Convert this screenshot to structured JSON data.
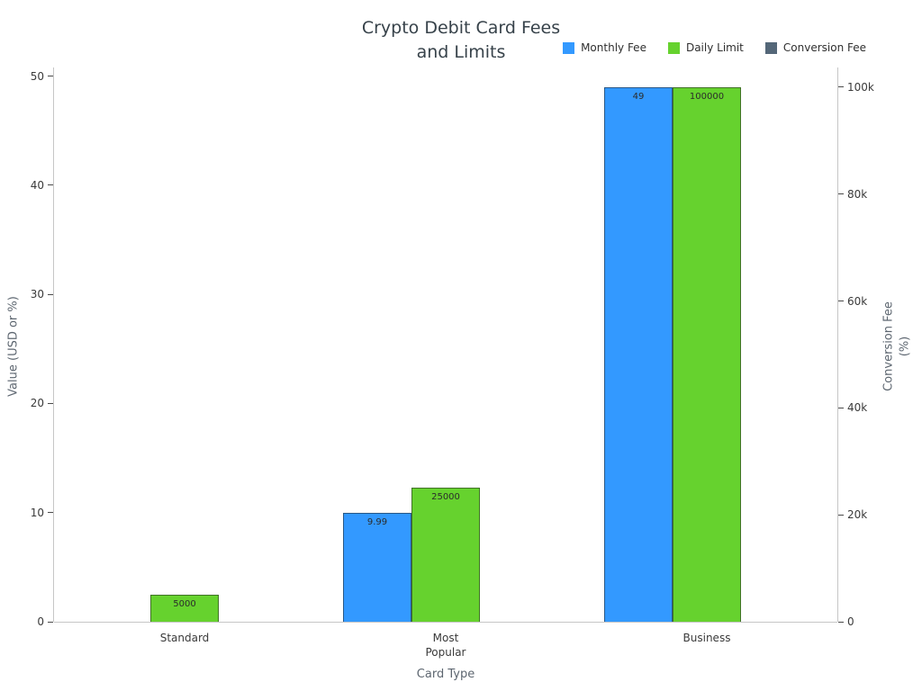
{
  "header": {
    "title": "Crypto Debit Card Fees\nand Limits"
  },
  "chart_data": {
    "type": "bar",
    "title": "Crypto Debit Card Fees and Limits",
    "xlabel": "Card Type",
    "ylabel_left": "Value (USD or %)",
    "ylabel_right": "Conversion Fee (%)",
    "categories": [
      "Standard",
      "Most Popular",
      "Business"
    ],
    "x_tick_labels": [
      "Standard",
      "Most\nPopular",
      "Business"
    ],
    "series": [
      {
        "name": "Monthly Fee",
        "color": "#3399ff",
        "axis": "left",
        "values": [
          0,
          9.99,
          49
        ],
        "bar_labels": [
          "",
          "9.99",
          "49"
        ]
      },
      {
        "name": "Daily Limit",
        "color": "#66d22e",
        "axis": "right",
        "values": [
          5000,
          25000,
          100000
        ],
        "bar_labels": [
          "5000",
          "25000",
          "100000"
        ]
      },
      {
        "name": "Conversion Fee",
        "color": "#546778",
        "axis": "left",
        "values": [
          0,
          0,
          0
        ],
        "bar_labels": [
          "",
          "",
          ""
        ]
      }
    ],
    "left_axis": {
      "ticks": [
        0,
        10,
        20,
        30,
        40,
        50
      ],
      "range": [
        0,
        50.8
      ]
    },
    "right_axis": {
      "tick_labels": [
        "0",
        "20k",
        "40k",
        "60k",
        "80k",
        "100k"
      ],
      "tick_values": [
        0,
        20000,
        40000,
        60000,
        80000,
        100000
      ],
      "range": [
        0,
        103700
      ]
    },
    "legend": [
      "Monthly Fee",
      "Daily Limit",
      "Conversion Fee"
    ],
    "legend_position": "top-right",
    "grid": false
  }
}
